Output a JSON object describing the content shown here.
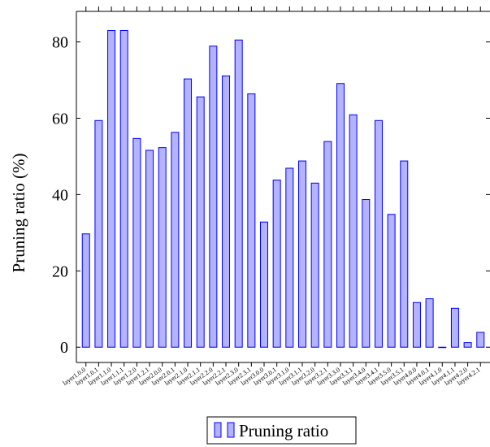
{
  "chart_data": {
    "type": "bar",
    "ylabel": "Pruning ratio (%)",
    "xlabel": "",
    "title": "",
    "categories": [
      "layer1.0.0",
      "layer1.0.1",
      "layer1.1.0",
      "layer1.1.1",
      "layer1.2.0",
      "layer1.2.1",
      "layer2.0.0",
      "layer2.0.1",
      "layer2.1.0",
      "layer2.1.1",
      "layer2.2.0",
      "layer2.2.1",
      "layer2.3.0",
      "layer2.3.1",
      "layer3.0.0",
      "layer3.0.1",
      "layer3.1.0",
      "layer3.1.1",
      "layer3.2.0",
      "layer3.2.1",
      "layer3.3.0",
      "layer3.3.1",
      "layer3.4.0",
      "layer3.4.1",
      "layer3.5.0",
      "layer3.5.1",
      "layer4.0.0",
      "layer4.0.1",
      "layer4.1.0",
      "layer4.1.1",
      "layer4.2.0",
      "layer4.2.1"
    ],
    "series": [
      {
        "name": "Pruning ratio",
        "color": "#b3b3ff",
        "stroke": "#0000ff",
        "values": [
          29.7,
          59.4,
          83.0,
          83.0,
          54.7,
          51.6,
          52.3,
          56.3,
          70.3,
          65.6,
          78.9,
          71.1,
          80.5,
          66.4,
          32.8,
          43.8,
          46.9,
          48.8,
          43.0,
          53.9,
          69.1,
          60.9,
          38.7,
          59.4,
          34.8,
          48.8,
          11.7,
          12.7,
          0.0,
          10.2,
          1.2,
          3.9
        ]
      }
    ],
    "ylim": [
      -4,
      88
    ],
    "yticks": [
      "0",
      "20",
      "40",
      "60",
      "80"
    ],
    "grid": false,
    "legend_position": "bottom-center"
  }
}
